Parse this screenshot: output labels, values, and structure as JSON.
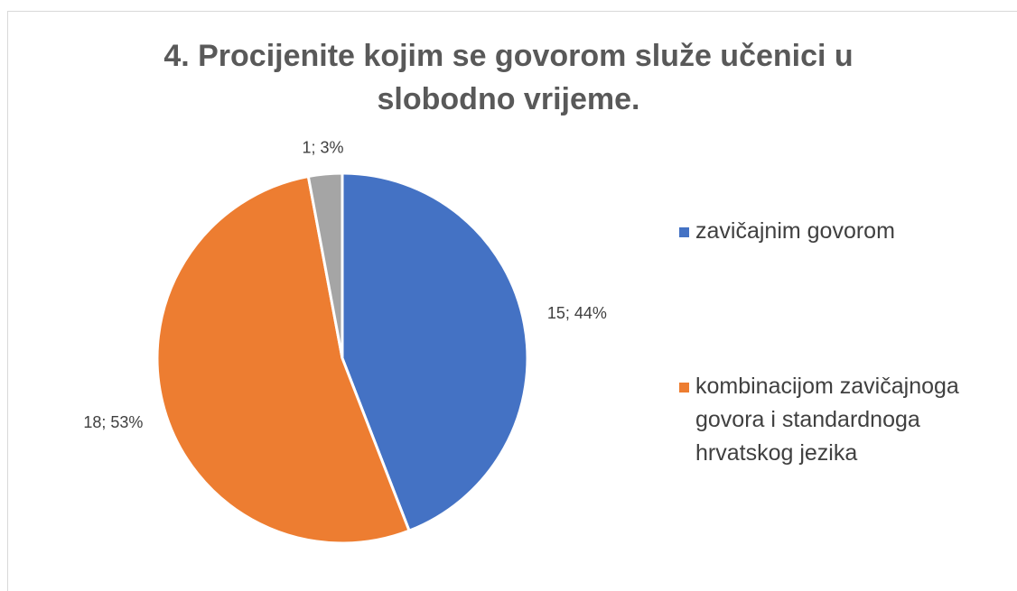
{
  "chart_data": {
    "type": "pie",
    "title": "4. Procijenite kojim se govorom služe učenici u slobodno vrijeme.",
    "categories": [
      "zavičajnim govorom",
      "kombinacijom zavičajnoga govora i standardnoga hrvatskog jezika",
      null
    ],
    "values": [
      15,
      18,
      1
    ],
    "value_labels": [
      "15; 44%",
      "18; 53%",
      "1; 3%"
    ],
    "colors": [
      "#4472c4",
      "#ed7d31",
      "#a5a5a5"
    ]
  }
}
